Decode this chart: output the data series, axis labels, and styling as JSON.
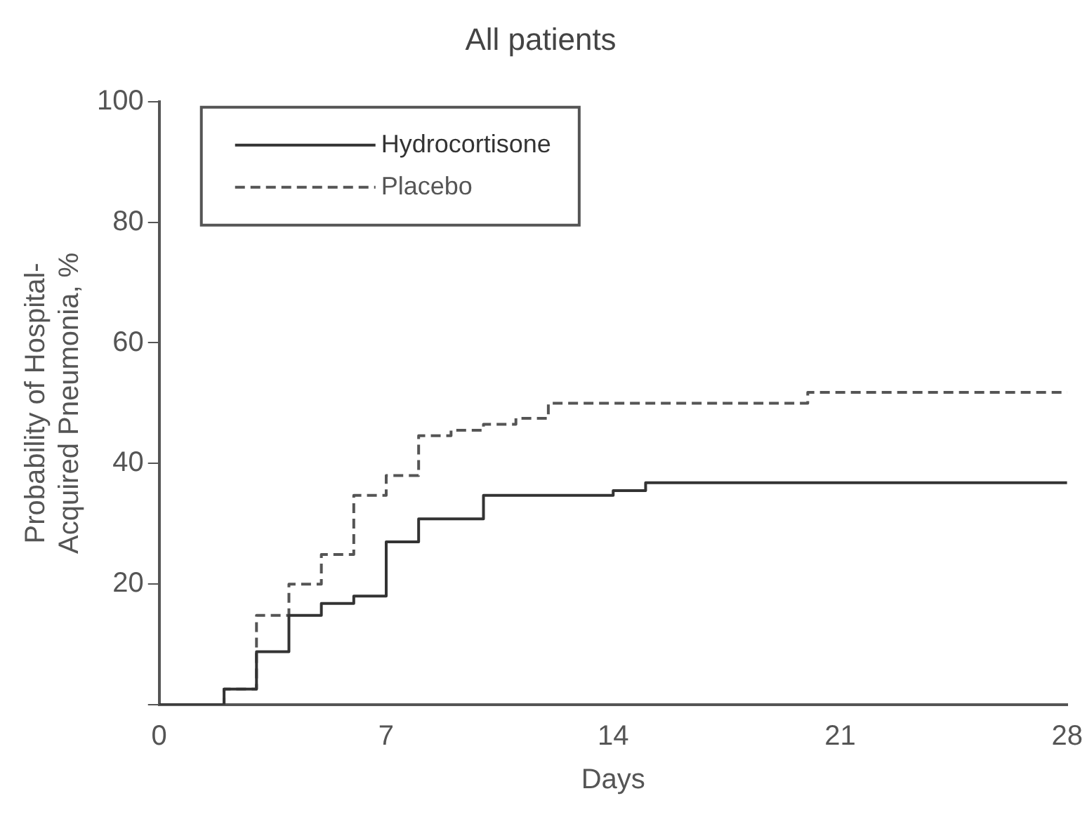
{
  "chart_data": {
    "type": "step",
    "title": "All patients",
    "xlabel": "Days",
    "ylabel": "Probability of Hospital-\nAcquired Pneumonia, %",
    "xlim": [
      0,
      28
    ],
    "xticks": [
      0,
      7,
      14,
      21,
      28
    ],
    "ylim": [
      0,
      100
    ],
    "yticks": [
      {
        "value": 0,
        "label": null
      },
      20,
      40,
      60,
      80,
      100
    ],
    "grid": false,
    "legend": "top left",
    "marker": "none",
    "series": [
      {
        "name": "Hydrocortisone",
        "color": "#333333",
        "line_style": "solid",
        "x": [
          0,
          2,
          3,
          4,
          5,
          6,
          7,
          8,
          10,
          14,
          15,
          28
        ],
        "values": [
          0,
          2.6,
          8.8,
          14.8,
          16.8,
          18,
          27,
          30.8,
          34.7,
          35.5,
          36.8,
          36.8
        ]
      },
      {
        "name": "Placebo",
        "color": "#555555",
        "line_style": "dashed",
        "x": [
          0,
          2,
          3,
          4,
          5,
          6,
          7,
          8,
          9,
          10,
          11,
          12,
          20,
          28
        ],
        "values": [
          0,
          2.6,
          14.8,
          20,
          24.9,
          34.7,
          38,
          44.6,
          45.5,
          46.5,
          47.5,
          50,
          51.8,
          51.8
        ]
      }
    ]
  }
}
